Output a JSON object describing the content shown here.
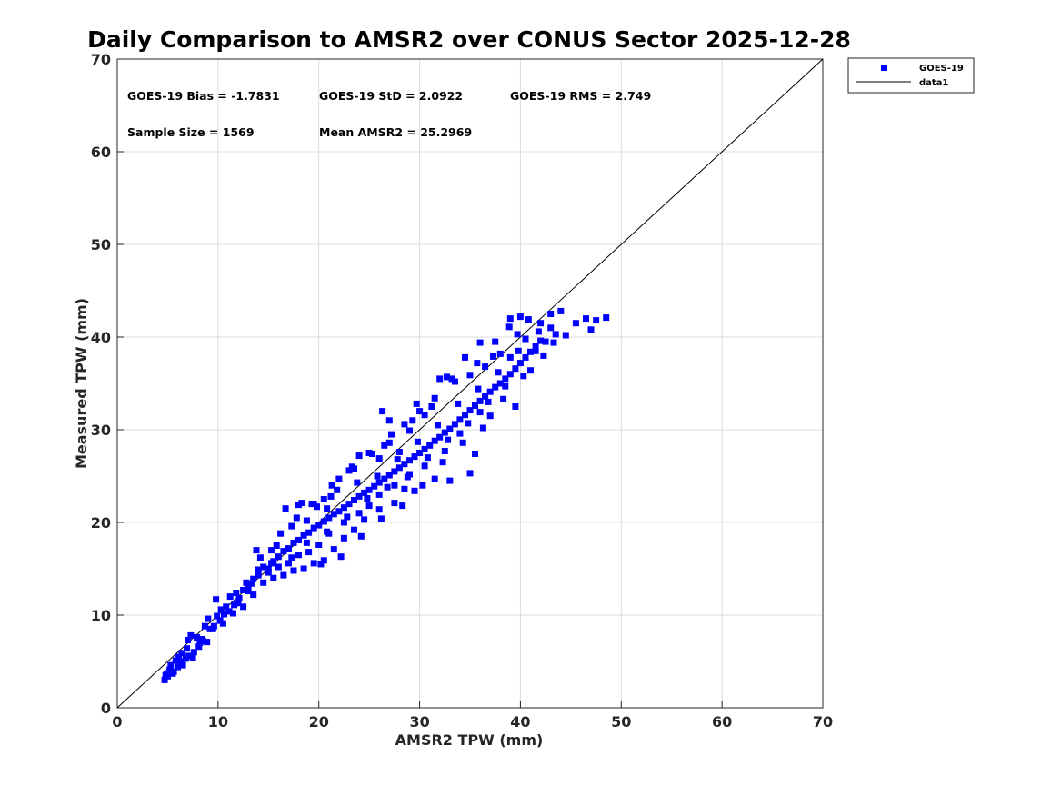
{
  "chart_data": {
    "type": "scatter",
    "title": "Daily Comparison to AMSR2 over CONUS Sector 2025-12-28",
    "xlabel": "AMSR2 TPW (mm)",
    "ylabel": "Measured TPW (mm)",
    "xlim": [
      0,
      70
    ],
    "ylim": [
      0,
      70
    ],
    "xticks": [
      "0",
      "10",
      "20",
      "30",
      "40",
      "50",
      "60",
      "70"
    ],
    "yticks": [
      "0",
      "10",
      "20",
      "30",
      "40",
      "50",
      "60",
      "70"
    ],
    "grid": true,
    "legend_position": "outside-top-right",
    "stats": {
      "bias": "GOES-19 Bias = -1.7831",
      "std": "GOES-19 StD = 2.0922",
      "rms": "GOES-19 RMS = 2.749",
      "sample_size": "Sample Size = 1569",
      "mean": "Mean AMSR2 = 25.2969"
    },
    "series": [
      {
        "name": "GOES-19",
        "kind": "scatter",
        "marker": "square",
        "color": "#0000ff",
        "points": [
          [
            4.7,
            3.0
          ],
          [
            5.0,
            3.4
          ],
          [
            5.2,
            4.1
          ],
          [
            4.9,
            3.7
          ],
          [
            5.6,
            3.9
          ],
          [
            6.0,
            4.4
          ],
          [
            6.3,
            5.0
          ],
          [
            6.8,
            5.3
          ],
          [
            7.1,
            5.6
          ],
          [
            7.6,
            6.0
          ],
          [
            8.1,
            6.6
          ],
          [
            8.4,
            7.4
          ],
          [
            8.9,
            7.1
          ],
          [
            9.2,
            8.5
          ],
          [
            9.6,
            8.8
          ],
          [
            10.2,
            9.4
          ],
          [
            10.6,
            10.1
          ],
          [
            11.1,
            10.4
          ],
          [
            11.6,
            11.1
          ],
          [
            12.1,
            11.8
          ],
          [
            12.5,
            12.7
          ],
          [
            13.0,
            13.1
          ],
          [
            13.5,
            13.9
          ],
          [
            14.0,
            14.3
          ],
          [
            14.5,
            15.2
          ],
          [
            15.0,
            15.0
          ],
          [
            15.5,
            15.8
          ],
          [
            16.0,
            16.3
          ],
          [
            16.5,
            16.9
          ],
          [
            17.0,
            17.2
          ],
          [
            17.5,
            17.8
          ],
          [
            18.0,
            18.1
          ],
          [
            18.5,
            18.6
          ],
          [
            19.0,
            18.9
          ],
          [
            19.5,
            19.4
          ],
          [
            20.0,
            19.7
          ],
          [
            20.5,
            20.1
          ],
          [
            21.0,
            20.5
          ],
          [
            21.5,
            20.9
          ],
          [
            22.0,
            21.2
          ],
          [
            22.5,
            21.6
          ],
          [
            23.0,
            22.0
          ],
          [
            23.5,
            22.4
          ],
          [
            24.0,
            22.8
          ],
          [
            24.5,
            23.2
          ],
          [
            25.0,
            23.5
          ],
          [
            25.5,
            23.9
          ],
          [
            26.0,
            24.3
          ],
          [
            26.5,
            24.7
          ],
          [
            27.0,
            25.1
          ],
          [
            27.5,
            25.5
          ],
          [
            28.0,
            25.9
          ],
          [
            28.5,
            26.3
          ],
          [
            29.0,
            26.7
          ],
          [
            29.5,
            27.1
          ],
          [
            30.0,
            27.5
          ],
          [
            30.5,
            27.9
          ],
          [
            31.0,
            28.3
          ],
          [
            31.5,
            28.8
          ],
          [
            32.0,
            29.2
          ],
          [
            32.5,
            29.7
          ],
          [
            33.0,
            30.1
          ],
          [
            33.5,
            30.6
          ],
          [
            34.0,
            31.1
          ],
          [
            34.5,
            31.6
          ],
          [
            35.0,
            32.1
          ],
          [
            35.5,
            32.6
          ],
          [
            36.0,
            33.1
          ],
          [
            36.5,
            33.6
          ],
          [
            37.0,
            34.1
          ],
          [
            37.5,
            34.6
          ],
          [
            38.0,
            35.0
          ],
          [
            38.5,
            35.5
          ],
          [
            39.0,
            36.0
          ],
          [
            39.5,
            36.6
          ],
          [
            40.0,
            37.2
          ],
          [
            40.5,
            37.8
          ],
          [
            41.0,
            38.4
          ],
          [
            41.5,
            39.0
          ],
          [
            42.0,
            39.6
          ],
          [
            18.0,
            21.9
          ],
          [
            19.5,
            22.0
          ],
          [
            20.5,
            22.5
          ],
          [
            22.0,
            24.7
          ],
          [
            23.5,
            25.8
          ],
          [
            25.0,
            27.5
          ],
          [
            26.5,
            28.3
          ],
          [
            28.5,
            30.6
          ],
          [
            30.0,
            32.0
          ],
          [
            32.0,
            35.5
          ],
          [
            34.5,
            37.8
          ],
          [
            36.0,
            39.4
          ],
          [
            37.5,
            39.5
          ],
          [
            39.0,
            42.0
          ],
          [
            40.0,
            42.2
          ],
          [
            43.0,
            42.5
          ],
          [
            44.0,
            42.8
          ],
          [
            45.5,
            41.5
          ],
          [
            46.5,
            42.0
          ],
          [
            47.5,
            41.8
          ],
          [
            48.5,
            42.1
          ],
          [
            47.0,
            40.8
          ],
          [
            43.5,
            40.3
          ],
          [
            42.5,
            39.5
          ],
          [
            41.5,
            38.5
          ],
          [
            39.5,
            32.5
          ],
          [
            37.0,
            31.5
          ],
          [
            35.5,
            27.4
          ],
          [
            35.0,
            25.3
          ],
          [
            33.0,
            24.5
          ],
          [
            31.5,
            24.7
          ],
          [
            29.5,
            23.4
          ],
          [
            28.5,
            23.6
          ],
          [
            27.5,
            22.1
          ],
          [
            26.0,
            21.4
          ],
          [
            24.5,
            20.3
          ],
          [
            23.5,
            19.2
          ],
          [
            22.5,
            18.3
          ],
          [
            21.5,
            17.1
          ],
          [
            20.5,
            15.9
          ],
          [
            19.5,
            15.6
          ],
          [
            18.5,
            15.0
          ],
          [
            17.5,
            14.8
          ],
          [
            16.5,
            14.3
          ],
          [
            15.5,
            14.0
          ],
          [
            14.5,
            13.5
          ],
          [
            13.5,
            12.2
          ],
          [
            12.5,
            10.9
          ],
          [
            11.5,
            10.2
          ],
          [
            10.5,
            9.1
          ],
          [
            9.5,
            8.5
          ],
          [
            8.5,
            7.2
          ],
          [
            7.5,
            5.4
          ],
          [
            6.5,
            4.6
          ],
          [
            5.5,
            3.7
          ],
          [
            11.2,
            12.0
          ],
          [
            9.8,
            11.7
          ],
          [
            13.8,
            17.0
          ],
          [
            16.2,
            18.8
          ],
          [
            17.8,
            20.5
          ],
          [
            19.8,
            21.7
          ],
          [
            21.2,
            22.8
          ],
          [
            23.0,
            25.6
          ],
          [
            24.0,
            27.2
          ],
          [
            26.0,
            26.9
          ],
          [
            27.0,
            28.6
          ],
          [
            28.0,
            27.6
          ],
          [
            29.0,
            29.9
          ],
          [
            30.5,
            31.6
          ],
          [
            31.5,
            33.4
          ],
          [
            33.5,
            35.2
          ],
          [
            35.0,
            35.9
          ],
          [
            36.5,
            36.8
          ],
          [
            38.0,
            38.2
          ],
          [
            39.0,
            37.8
          ],
          [
            40.5,
            39.8
          ],
          [
            42.0,
            41.5
          ],
          [
            41.0,
            36.4
          ],
          [
            38.5,
            34.7
          ],
          [
            36.0,
            31.9
          ],
          [
            34.0,
            29.6
          ],
          [
            32.5,
            27.7
          ],
          [
            30.5,
            26.1
          ],
          [
            29.0,
            25.2
          ],
          [
            27.5,
            24.0
          ],
          [
            26.0,
            23.0
          ],
          [
            25.0,
            21.8
          ],
          [
            24.0,
            21.0
          ],
          [
            22.5,
            20.0
          ],
          [
            21.0,
            18.8
          ],
          [
            20.0,
            17.6
          ],
          [
            19.0,
            16.8
          ],
          [
            18.0,
            16.5
          ],
          [
            17.0,
            15.6
          ],
          [
            16.0,
            15.2
          ],
          [
            15.0,
            14.6
          ],
          [
            14.0,
            14.9
          ],
          [
            13.0,
            12.6
          ],
          [
            12.0,
            11.3
          ],
          [
            10.8,
            10.9
          ],
          [
            9.9,
            9.9
          ],
          [
            8.7,
            8.8
          ],
          [
            7.9,
            7.6
          ],
          [
            6.9,
            6.4
          ],
          [
            6.1,
            5.5
          ],
          [
            5.3,
            4.6
          ],
          [
            4.8,
            3.5
          ],
          [
            7.3,
            7.8
          ],
          [
            8.2,
            7.0
          ],
          [
            12.8,
            13.5
          ],
          [
            15.8,
            17.5
          ],
          [
            18.8,
            20.2
          ],
          [
            20.8,
            21.5
          ],
          [
            21.8,
            23.5
          ],
          [
            23.8,
            24.3
          ],
          [
            25.8,
            25.0
          ],
          [
            27.8,
            26.8
          ],
          [
            29.8,
            28.7
          ],
          [
            31.8,
            30.5
          ],
          [
            33.8,
            32.8
          ],
          [
            35.8,
            34.4
          ],
          [
            37.8,
            36.2
          ],
          [
            39.8,
            38.5
          ],
          [
            41.8,
            40.6
          ],
          [
            43.0,
            41.0
          ],
          [
            44.5,
            40.2
          ],
          [
            36.8,
            33.0
          ],
          [
            34.8,
            30.7
          ],
          [
            32.8,
            28.9
          ],
          [
            30.8,
            27.0
          ],
          [
            28.8,
            24.9
          ],
          [
            26.8,
            23.8
          ],
          [
            24.8,
            22.6
          ],
          [
            22.8,
            20.6
          ],
          [
            20.8,
            19.0
          ],
          [
            18.8,
            17.8
          ],
          [
            17.3,
            16.2
          ],
          [
            15.3,
            15.6
          ],
          [
            13.3,
            13.4
          ],
          [
            11.8,
            12.4
          ],
          [
            10.3,
            10.6
          ],
          [
            9.0,
            9.6
          ],
          [
            7.0,
            7.3
          ],
          [
            6.4,
            5.9
          ],
          [
            5.8,
            5.1
          ],
          [
            38.9,
            41.1
          ],
          [
            40.8,
            41.9
          ],
          [
            35.7,
            37.2
          ],
          [
            33.2,
            35.5
          ],
          [
            31.2,
            32.5
          ],
          [
            29.3,
            31.0
          ],
          [
            27.2,
            29.5
          ],
          [
            25.3,
            27.4
          ],
          [
            23.3,
            26.0
          ],
          [
            21.3,
            24.0
          ],
          [
            19.3,
            22.0
          ],
          [
            17.3,
            19.6
          ],
          [
            15.3,
            17.0
          ],
          [
            14.2,
            16.2
          ],
          [
            20.2,
            15.5
          ],
          [
            22.2,
            16.3
          ],
          [
            24.2,
            18.5
          ],
          [
            26.2,
            20.4
          ],
          [
            28.3,
            21.8
          ],
          [
            30.3,
            24.0
          ],
          [
            32.3,
            26.5
          ],
          [
            34.3,
            28.6
          ],
          [
            36.3,
            30.2
          ],
          [
            38.3,
            33.3
          ],
          [
            40.3,
            35.8
          ],
          [
            42.3,
            38.0
          ],
          [
            43.3,
            39.4
          ],
          [
            27.0,
            31.0
          ],
          [
            26.3,
            32.0
          ],
          [
            29.7,
            32.8
          ],
          [
            32.7,
            35.7
          ],
          [
            37.3,
            37.9
          ],
          [
            39.7,
            40.3
          ],
          [
            16.7,
            21.5
          ],
          [
            18.3,
            22.1
          ]
        ]
      },
      {
        "name": "data1",
        "kind": "line",
        "color": "#000000",
        "x": [
          0,
          70
        ],
        "y": [
          0,
          70
        ]
      }
    ]
  }
}
